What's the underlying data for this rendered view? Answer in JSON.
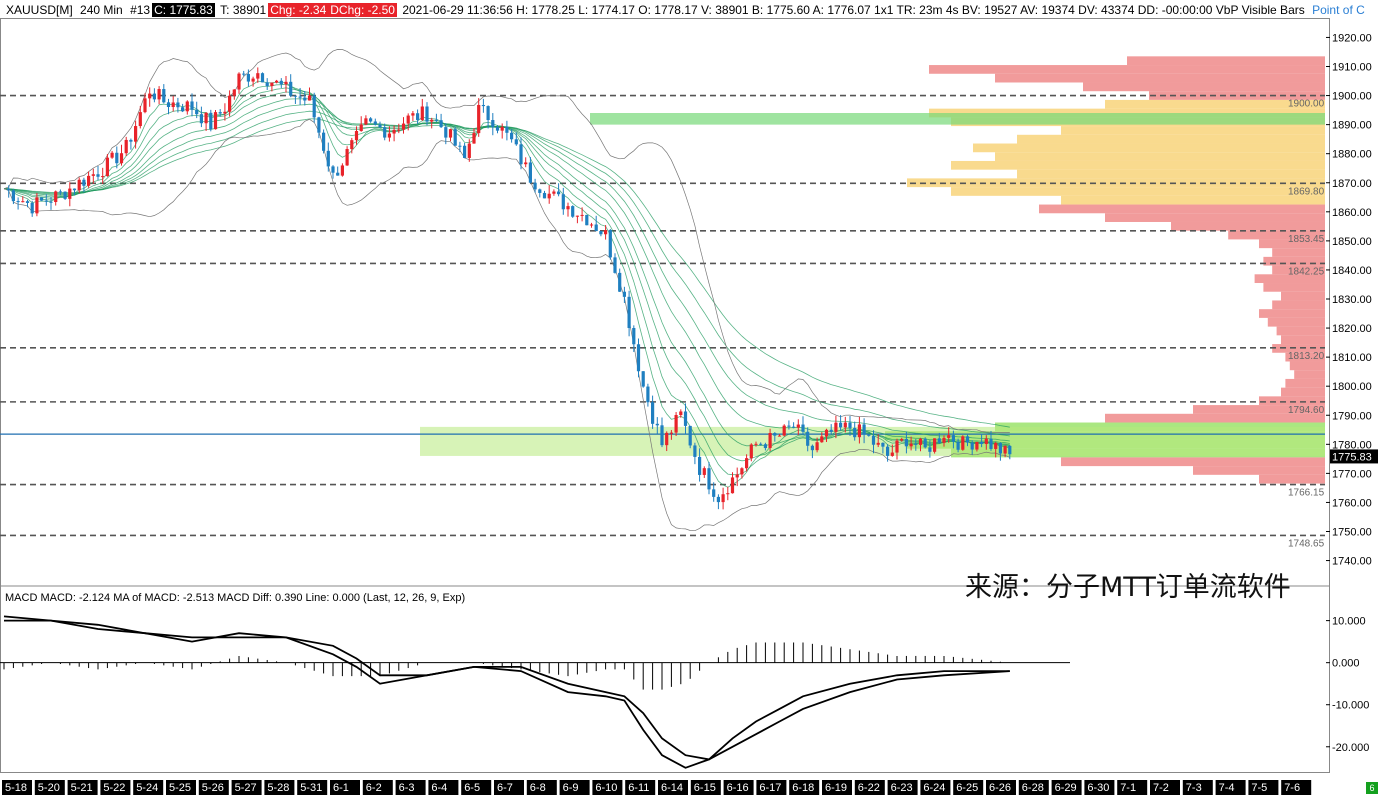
{
  "header": {
    "symbol": "XAUUSD[M]",
    "timeframe": "240 Min",
    "bar_no": "#13",
    "close": "C: 1775.83",
    "ticks": "T: 38901",
    "chg": "Chg: -2.34",
    "dchg": "DChg: -2.50",
    "info": "2021-06-29 11:36:56 H: 1778.25 L: 1774.17 O: 1778.17 V: 38901 B: 1775.60 A: 1776.07 1x1 TR: 23m 4s BV: 19527 AV: 19374 DV: 43374 DD: -00:00:00 VbP Visible Bars",
    "poc": "Point of C"
  },
  "watermark": "来源：分子MTT订单流软件",
  "macd_header": "MACD   MACD: -2.124   MA of MACD: -2.513   MACD Diff: 0.390   Line: 0.000    (Last, 12, 26, 9, Exp)",
  "colors": {
    "up": "#e8232a",
    "down": "#1f7fc0",
    "ribbon": "#1f9a5e",
    "poc_line": "#1f6fb0"
  },
  "corner_label": "6",
  "chart_data": [
    {
      "type": "candlestick",
      "price_axis": {
        "ticks": [
          "1920.00",
          "1910.00",
          "1900.00",
          "1890.00",
          "1880.00",
          "1870.00",
          "1860.00",
          "1850.00",
          "1840.00",
          "1830.00",
          "1820.00",
          "1810.00",
          "1800.00",
          "1790.00",
          "1780.00",
          "1770.00",
          "1760.00",
          "1750.00",
          "1740.00"
        ],
        "range": [
          1734,
          1926
        ]
      },
      "last_price": "1775.83",
      "level_values": [
        1900.0,
        1869.8,
        1853.45,
        1842.25,
        1813.2,
        1794.6,
        1766.15,
        1748.65
      ],
      "level_labels": [
        "1900.00",
        "1869.80",
        "1853.45",
        "1842.25",
        "1813.20",
        "1794.60",
        "1766.15",
        "1748.65"
      ],
      "x_labels": [
        "5-18",
        "5-20",
        "5-21",
        "5-22",
        "5-24",
        "5-25",
        "5-26",
        "5-27",
        "5-28",
        "5-31",
        "6-1",
        "6-2",
        "6-3",
        "6-4",
        "6-5",
        "6-7",
        "6-8",
        "6-9",
        "6-10",
        "6-11",
        "6-14",
        "6-15",
        "6-16",
        "6-17",
        "6-18",
        "6-19",
        "6-22",
        "6-23",
        "6-24",
        "6-25",
        "6-26",
        "6-28",
        "6-29",
        "6-30",
        "7-1",
        "7-2",
        "7-3",
        "7-4",
        "7-5",
        "7-6"
      ],
      "close_path": {
        "x_index": [
          0,
          6,
          12,
          18,
          22,
          26,
          31,
          34,
          40,
          44,
          47,
          50,
          54,
          58,
          62,
          65,
          70,
          73,
          77,
          82,
          86,
          90,
          94,
          98,
          101,
          104,
          108,
          112,
          116,
          120,
          124,
          128,
          132,
          136,
          140,
          144,
          148,
          152,
          156,
          160,
          164,
          168,
          172,
          176,
          180,
          184,
          188,
          192,
          196,
          200,
          204,
          208,
          212,
          214
        ],
        "price": [
          1868,
          1862,
          1866,
          1872,
          1876,
          1882,
          1902,
          1898,
          1896,
          1890,
          1896,
          1906,
          1908,
          1904,
          1900,
          1898,
          1872,
          1880,
          1890,
          1888,
          1892,
          1894,
          1888,
          1878,
          1895,
          1892,
          1884,
          1872,
          1866,
          1862,
          1858,
          1852,
          1830,
          1800,
          1780,
          1790,
          1772,
          1762,
          1770,
          1780,
          1782,
          1786,
          1778,
          1784,
          1786,
          1782,
          1776,
          1782,
          1778,
          1784,
          1780,
          1782,
          1778,
          1776
        ]
      },
      "volume_profile": {
        "note": "VbP Visible Bars",
        "bins": [
          {
            "price": 1912,
            "v": 0.45
          },
          {
            "price": 1909,
            "v": 0.9
          },
          {
            "price": 1906,
            "v": 0.75
          },
          {
            "price": 1903,
            "v": 0.55
          },
          {
            "price": 1900,
            "v": 0.4
          },
          {
            "price": 1897,
            "v": 0.5
          },
          {
            "price": 1894,
            "v": 0.9
          },
          {
            "price": 1891,
            "v": 0.85
          },
          {
            "price": 1888,
            "v": 0.6
          },
          {
            "price": 1885,
            "v": 0.7
          },
          {
            "price": 1882,
            "v": 0.8
          },
          {
            "price": 1879,
            "v": 0.75
          },
          {
            "price": 1876,
            "v": 0.85
          },
          {
            "price": 1873,
            "v": 0.7
          },
          {
            "price": 1870,
            "v": 0.95
          },
          {
            "price": 1867,
            "v": 0.85
          },
          {
            "price": 1864,
            "v": 0.6
          },
          {
            "price": 1861,
            "v": 0.65
          },
          {
            "price": 1858,
            "v": 0.5
          },
          {
            "price": 1855,
            "v": 0.35
          },
          {
            "price": 1852,
            "v": 0.22
          },
          {
            "price": 1849,
            "v": 0.15
          },
          {
            "price": 1846,
            "v": 0.12
          },
          {
            "price": 1843,
            "v": 0.14
          },
          {
            "price": 1840,
            "v": 0.12
          },
          {
            "price": 1837,
            "v": 0.16
          },
          {
            "price": 1834,
            "v": 0.14
          },
          {
            "price": 1831,
            "v": 0.1
          },
          {
            "price": 1828,
            "v": 0.12
          },
          {
            "price": 1825,
            "v": 0.15
          },
          {
            "price": 1822,
            "v": 0.13
          },
          {
            "price": 1819,
            "v": 0.11
          },
          {
            "price": 1816,
            "v": 0.1
          },
          {
            "price": 1813,
            "v": 0.12
          },
          {
            "price": 1810,
            "v": 0.09
          },
          {
            "price": 1807,
            "v": 0.08
          },
          {
            "price": 1804,
            "v": 0.07
          },
          {
            "price": 1801,
            "v": 0.09
          },
          {
            "price": 1798,
            "v": 0.1
          },
          {
            "price": 1795,
            "v": 0.15
          },
          {
            "price": 1792,
            "v": 0.3
          },
          {
            "price": 1789,
            "v": 0.5
          },
          {
            "price": 1786,
            "v": 0.75
          },
          {
            "price": 1783,
            "v": 1.0
          },
          {
            "price": 1780,
            "v": 0.95
          },
          {
            "price": 1777,
            "v": 0.85
          },
          {
            "price": 1774,
            "v": 0.6
          },
          {
            "price": 1771,
            "v": 0.3
          },
          {
            "price": 1768,
            "v": 0.15
          }
        ]
      }
    },
    {
      "type": "macd",
      "y_axis": {
        "ticks": [
          "10.000",
          "0.000",
          "-10.000",
          "-20.000"
        ],
        "range": [
          -26,
          13
        ]
      },
      "x_index": [
        0,
        10,
        20,
        30,
        40,
        50,
        60,
        70,
        75,
        80,
        90,
        100,
        110,
        120,
        128,
        132,
        136,
        140,
        145,
        150,
        155,
        160,
        165,
        170,
        180,
        190,
        200,
        214
      ],
      "macd": [
        10,
        10,
        8,
        7,
        5,
        7,
        6,
        2,
        -1,
        -5,
        -3,
        -1,
        -2,
        -7,
        -8,
        -9,
        -16,
        -22,
        -25,
        -23,
        -18,
        -14,
        -11,
        -8,
        -5,
        -3,
        -2,
        -2
      ],
      "signal": [
        11,
        10,
        9,
        7,
        6,
        6,
        6,
        4,
        1,
        -3,
        -3,
        -1,
        -1,
        -5,
        -7,
        -8,
        -12,
        -18,
        -22,
        -23,
        -20,
        -17,
        -14,
        -11,
        -7,
        -4,
        -3,
        -2
      ]
    }
  ]
}
